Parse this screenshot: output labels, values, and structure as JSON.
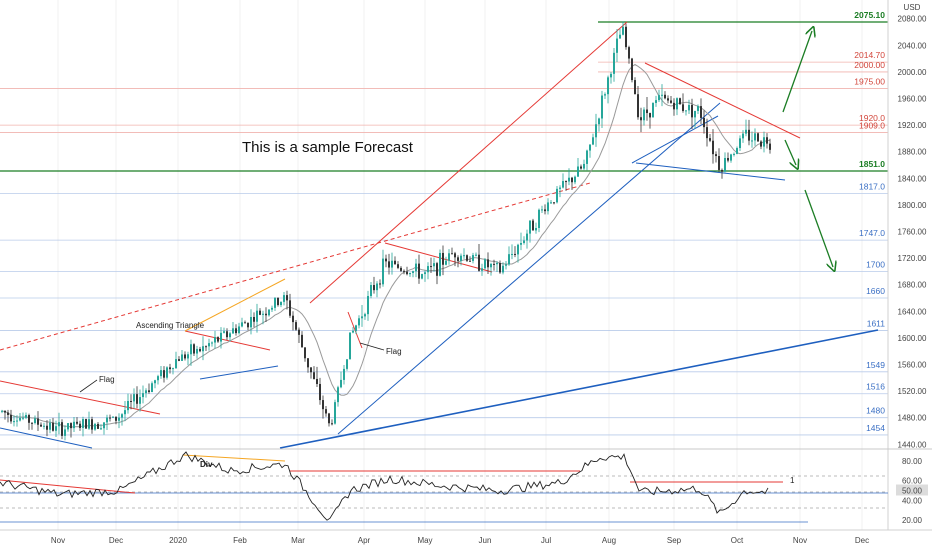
{
  "chart_data": [
    {
      "type": "candlestick",
      "title": "",
      "annotation_text": "This is a sample Forecast",
      "currency_label": "USD",
      "price_ticks": [
        "2080.00",
        "2040.00",
        "2000.00",
        "1960.00",
        "1920.00",
        "1880.00",
        "1840.00",
        "1800.00",
        "1760.00",
        "1720.00",
        "1680.00",
        "1640.00",
        "1600.00",
        "1560.00",
        "1520.00",
        "1480.00",
        "1440.00"
      ],
      "x_ticks": [
        "Nov",
        "Dec",
        "2020",
        "Feb",
        "Mar",
        "Apr",
        "May",
        "Jun",
        "Jul",
        "Aug",
        "Sep",
        "Oct",
        "Nov",
        "Dec"
      ],
      "levels": [
        {
          "label": "2075.10",
          "value": 2075.1,
          "color": "#1b7d24"
        },
        {
          "label": "2014.70",
          "value": 2014.7,
          "color": "#d2453a"
        },
        {
          "label": "2000.00",
          "value": 2000.0,
          "color": "#d2453a"
        },
        {
          "label": "1975.00",
          "value": 1975.0,
          "color": "#d2453a"
        },
        {
          "label": "1920.0",
          "value": 1920.0,
          "color": "#d2453a"
        },
        {
          "label": "1909.0",
          "value": 1909.0,
          "color": "#d2453a"
        },
        {
          "label": "1851.0",
          "value": 1851.0,
          "color": "#1b7d24"
        },
        {
          "label": "1817.0",
          "value": 1817.0,
          "color": "#3a6fc4"
        },
        {
          "label": "1747.0",
          "value": 1747.0,
          "color": "#3a6fc4"
        },
        {
          "label": "1700",
          "value": 1700.0,
          "color": "#3a6fc4"
        },
        {
          "label": "1660",
          "value": 1660.0,
          "color": "#3a6fc4"
        },
        {
          "label": "1611",
          "value": 1611.0,
          "color": "#3a6fc4"
        },
        {
          "label": "1549",
          "value": 1549.0,
          "color": "#3a6fc4"
        },
        {
          "label": "1516",
          "value": 1516.0,
          "color": "#3a6fc4"
        },
        {
          "label": "1480",
          "value": 1480.0,
          "color": "#3a6fc4"
        },
        {
          "label": "1454",
          "value": 1454.0,
          "color": "#3a6fc4"
        }
      ],
      "pattern_labels": [
        "Flag",
        "Ascending Triangle",
        "Flag"
      ],
      "price_path": [
        [
          "Oct",
          1490
        ],
        [
          "Nov",
          1462
        ],
        [
          "Dec",
          1478
        ],
        [
          "2020",
          1570
        ],
        [
          "Jan",
          1585
        ],
        [
          "Feb",
          1650
        ],
        [
          "Mar",
          1480
        ],
        [
          "Mar",
          1610
        ],
        [
          "Apr",
          1710
        ],
        [
          "May",
          1705
        ],
        [
          "Jun",
          1720
        ],
        [
          "Jul",
          1800
        ],
        [
          "Aug",
          2067
        ],
        [
          "Aug",
          1900
        ],
        [
          "Sep",
          1930
        ],
        [
          "Sep",
          1856
        ],
        [
          "Oct",
          1905
        ]
      ],
      "colors": {
        "up": "#26a69a",
        "down": "#333333",
        "resistance": "#e53935",
        "support": "#1e5fbf",
        "forecast": "#1b7d24",
        "divergence": "#f5a623"
      }
    },
    {
      "type": "line",
      "title": "",
      "div_label": "Div",
      "marker_label": "1",
      "y_ticks": [
        "80.00",
        "60.00",
        "50.00",
        "40.00",
        "20.00"
      ],
      "y_range": [
        10,
        92
      ],
      "levels": [
        60,
        50
      ]
    }
  ]
}
